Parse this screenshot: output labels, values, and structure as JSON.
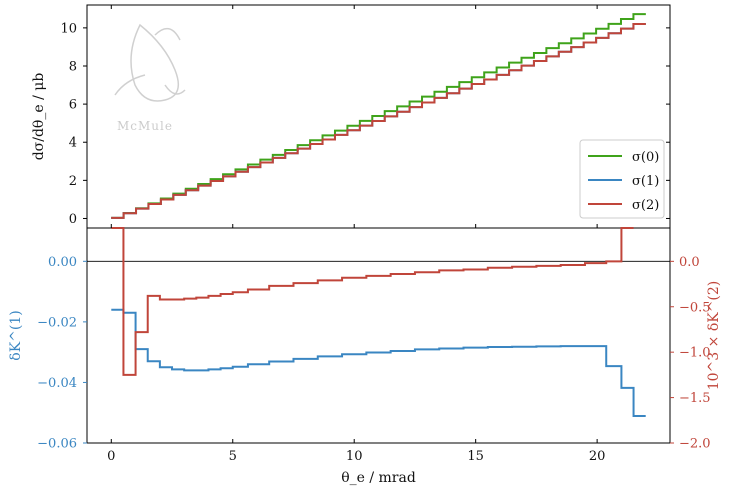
{
  "chart_data": [
    {
      "type": "line",
      "panel": "top",
      "xlabel": "",
      "ylabel": "dσ/dθ_e / μb",
      "ylim": [
        -0.5,
        11.2
      ],
      "xlim": [
        -1.0,
        23.0
      ],
      "x_ticks": [
        0,
        5,
        10,
        15,
        20
      ],
      "y_ticks": [
        0,
        2,
        4,
        6,
        8,
        10
      ],
      "legend": "bottom-right",
      "watermark": "McMule",
      "series": [
        {
          "name": "σ(0)",
          "color": "#3fa31a",
          "x_range": [
            0.25,
            21.75
          ],
          "y_start": 0.03,
          "y_end": 10.72,
          "bins": 43
        },
        {
          "name": "σ(1)",
          "color": "#3a86c2",
          "x_range": [
            0.25,
            21.75
          ],
          "y_start": 0.03,
          "y_end": 10.2,
          "bins": 43
        },
        {
          "name": "σ(2)",
          "color": "#c0453a",
          "x_range": [
            0.25,
            21.75
          ],
          "y_start": 0.03,
          "y_end": 10.2,
          "bins": 43
        }
      ]
    },
    {
      "type": "line",
      "panel": "bottom",
      "xlabel": "θ_e / mrad",
      "ylabel_left": "δK^(1)",
      "ylabel_right": "10^3 × δK^(2)",
      "xlim": [
        -1.0,
        23.0
      ],
      "ylim_left": [
        -0.06,
        0.011
      ],
      "ylim_right": [
        -2.0,
        0.367
      ],
      "x_ticks": [
        0,
        5,
        10,
        15,
        20
      ],
      "y_ticks_left": [
        -0.06,
        -0.04,
        -0.02,
        0.0
      ],
      "y_ticks_right": [
        -2.0,
        -1.5,
        -1.0,
        -0.5,
        0.0
      ],
      "series": [
        {
          "name": "δK(1)",
          "axis": "left",
          "color": "#3a86c2",
          "x": [
            0.25,
            0.75,
            1.25,
            1.75,
            2.25,
            2.75,
            3.25,
            3.75,
            4.25,
            4.75,
            5.25,
            6,
            7,
            8,
            9,
            10,
            11,
            12,
            13,
            14,
            15,
            16,
            17,
            18,
            19,
            20,
            20.75,
            21.25,
            21.75
          ],
          "y": [
            -0.016,
            -0.017,
            -0.029,
            -0.033,
            -0.035,
            -0.0357,
            -0.036,
            -0.036,
            -0.0357,
            -0.0353,
            -0.0348,
            -0.034,
            -0.0331,
            -0.0322,
            -0.0314,
            -0.0307,
            -0.0301,
            -0.0296,
            -0.0291,
            -0.0288,
            -0.0285,
            -0.0283,
            -0.0282,
            -0.0281,
            -0.028,
            -0.028,
            -0.0346,
            -0.0418,
            -0.0511
          ]
        },
        {
          "name": "δK(2)",
          "axis": "right",
          "color": "#c0453a",
          "x": [
            0.25,
            0.75,
            1.25,
            1.75,
            2.25,
            2.75,
            3.25,
            3.75,
            4.25,
            4.75,
            5.25,
            6,
            7,
            8,
            9,
            10,
            11,
            12,
            13,
            14,
            15,
            16,
            17,
            18,
            19,
            20,
            20.75,
            21.25
          ],
          "y": [
            0.5,
            -1.25,
            -0.78,
            -0.38,
            -0.42,
            -0.42,
            -0.41,
            -0.4,
            -0.38,
            -0.36,
            -0.34,
            -0.31,
            -0.27,
            -0.24,
            -0.21,
            -0.18,
            -0.16,
            -0.14,
            -0.12,
            -0.1,
            -0.09,
            -0.07,
            -0.06,
            -0.05,
            -0.04,
            -0.02,
            0.0,
            0.5
          ]
        }
      ]
    }
  ]
}
